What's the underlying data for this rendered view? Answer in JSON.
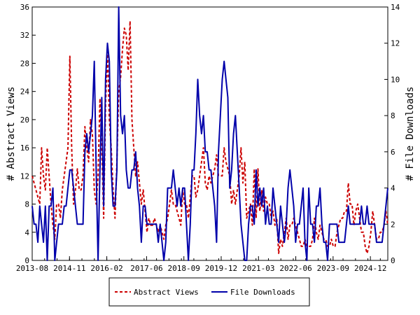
{
  "chart_data": {
    "type": "line",
    "ylabel_left": "# Abstract Views",
    "ylabel_right": "# File Downloads",
    "ylim_left": [
      0,
      36
    ],
    "ylim_right": [
      0,
      14
    ],
    "yticks_left": [
      "0",
      "4",
      "8",
      "12",
      "16",
      "20",
      "24",
      "28",
      "32",
      "36"
    ],
    "yticks_right": [
      "0",
      "2",
      "4",
      "6",
      "8",
      "10",
      "12",
      "14"
    ],
    "x_start": "2013-08",
    "x_end": "2025-07",
    "xticks": [
      "2013-08",
      "2014-11",
      "2016-02",
      "2017-06",
      "2018-09",
      "2019-12",
      "2021-03",
      "2022-06",
      "2023-09",
      "2024-12"
    ],
    "grid": false,
    "legend_position": "bottom",
    "series": [
      {
        "name": "Abstract Views",
        "axis": "left",
        "color": "#cc0000",
        "style": "dashed",
        "values": [
          12,
          11,
          10,
          9,
          8,
          16,
          12,
          10,
          16,
          12,
          8,
          5,
          3,
          8,
          8,
          6,
          10,
          12,
          14,
          16,
          29,
          16,
          8,
          10,
          13,
          10,
          10,
          12,
          19,
          16,
          14,
          20,
          18,
          10,
          8,
          12,
          23,
          16,
          6,
          22,
          30,
          20,
          16,
          10,
          6,
          14,
          24,
          26,
          30,
          33,
          32,
          27,
          34,
          20,
          16,
          12,
          14,
          11,
          8,
          10,
          7,
          4,
          6,
          5,
          5,
          6,
          5,
          4,
          5,
          4,
          3,
          5,
          6,
          8,
          10,
          8,
          8,
          7,
          6,
          5,
          10,
          8,
          8,
          6,
          9,
          12,
          12,
          9,
          10,
          12,
          14,
          16,
          11,
          10,
          12,
          11,
          12,
          13,
          15,
          12,
          12,
          12,
          16,
          14,
          13,
          12,
          8,
          10,
          8,
          10,
          12,
          16,
          11,
          14,
          6,
          7,
          8,
          5,
          13,
          6,
          13,
          7,
          10,
          7,
          9,
          8,
          8,
          6,
          7,
          5,
          6,
          1,
          3,
          2,
          4,
          6,
          3,
          5,
          5,
          6,
          5,
          4,
          3,
          2,
          2,
          3,
          2,
          2,
          2,
          3,
          6,
          4,
          3,
          5,
          4,
          3,
          3,
          2,
          2,
          3,
          2,
          2,
          4,
          5,
          6,
          6,
          7,
          7,
          11,
          8,
          8,
          5,
          7,
          8,
          6,
          4,
          4,
          2,
          1,
          2,
          4,
          7,
          5,
          3,
          3,
          4,
          4,
          5,
          7,
          5
        ]
      },
      {
        "name": "File Downloads",
        "axis": "right",
        "color": "#0000aa",
        "style": "solid",
        "values": [
          3,
          2,
          2,
          1,
          3,
          2,
          1,
          3,
          0,
          3,
          3,
          4,
          0,
          1,
          2,
          2,
          2,
          3,
          3,
          4,
          5,
          5,
          4,
          3,
          2,
          2,
          2,
          2,
          6,
          7,
          6,
          7,
          8,
          11,
          5,
          0,
          5,
          9,
          3,
          10,
          12,
          11,
          5,
          3,
          3,
          5,
          14,
          8,
          7,
          8,
          5,
          4,
          4,
          5,
          5,
          6,
          4,
          3,
          1,
          3,
          3,
          2,
          2,
          2,
          2,
          2,
          2,
          1,
          2,
          1,
          0,
          1,
          4,
          4,
          4,
          5,
          4,
          3,
          4,
          3,
          4,
          4,
          2,
          0,
          2,
          5,
          5,
          7,
          10,
          8,
          7,
          8,
          6,
          6,
          5,
          5,
          4,
          3,
          1,
          6,
          8,
          10,
          11,
          10,
          9,
          4,
          5,
          7,
          8,
          6,
          4,
          2,
          1,
          0,
          0,
          2,
          3,
          3,
          2,
          5,
          3,
          4,
          3,
          4,
          2,
          3,
          2,
          2,
          4,
          3,
          2,
          1,
          3,
          2,
          1,
          2,
          4,
          5,
          4,
          3,
          1,
          2,
          2,
          3,
          4,
          1,
          0,
          4,
          2,
          2,
          1,
          3,
          3,
          4,
          2,
          1,
          1,
          0,
          2,
          2,
          2,
          2,
          2,
          1,
          1,
          1,
          1,
          2,
          3,
          2,
          2,
          2,
          2,
          2,
          2,
          3,
          2,
          2,
          3,
          2,
          2,
          2,
          2,
          1,
          1,
          1,
          1,
          2,
          3,
          4
        ]
      }
    ]
  }
}
